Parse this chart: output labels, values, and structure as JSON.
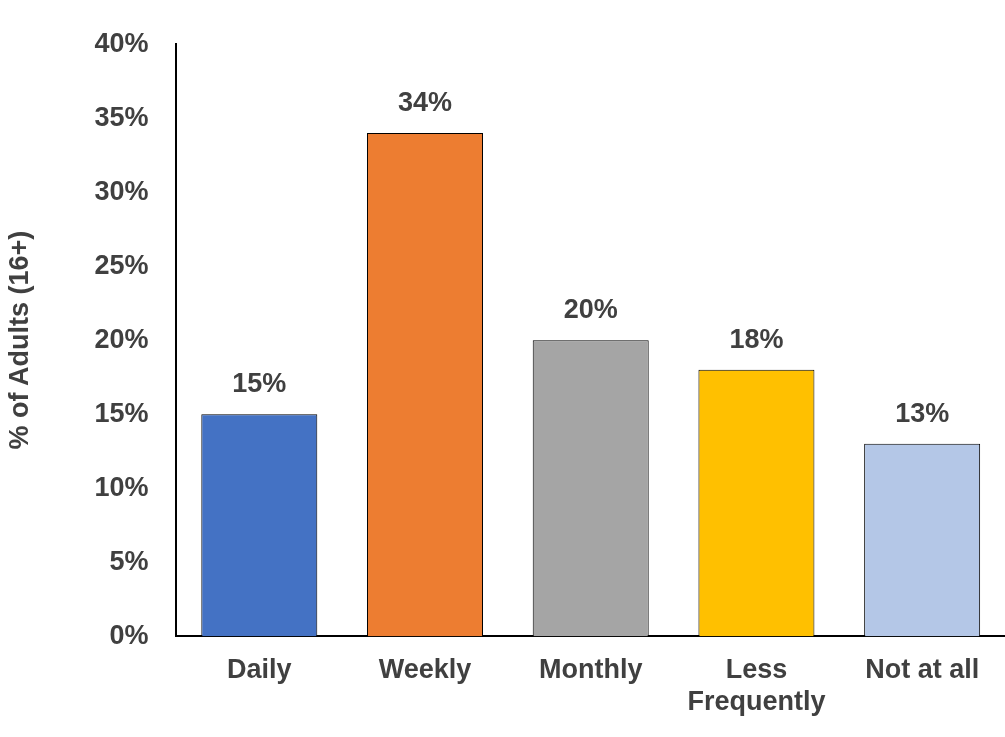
{
  "chart_data": {
    "type": "bar",
    "ylabel": "% of Adults (16+)",
    "categories": [
      "Daily",
      "Weekly",
      "Monthly",
      "Less Frequently",
      "Not at all"
    ],
    "values": [
      15,
      34,
      20,
      18,
      13
    ],
    "colors": [
      "#4472c4",
      "#ed7d31",
      "#a5a5a5",
      "#ffc000",
      "#b4c7e7"
    ],
    "value_labels": [
      "15%",
      "34%",
      "20%",
      "18%",
      "13%"
    ],
    "ylim": [
      0,
      40
    ],
    "yticks": [
      {
        "value": 0,
        "label": "0%"
      },
      {
        "value": 5,
        "label": "5%"
      },
      {
        "value": 10,
        "label": "10%"
      },
      {
        "value": 15,
        "label": "15%"
      },
      {
        "value": 20,
        "label": "20%"
      },
      {
        "value": 25,
        "label": "25%"
      },
      {
        "value": 30,
        "label": "30%"
      },
      {
        "value": 35,
        "label": "35%"
      },
      {
        "value": 40,
        "label": "40%"
      }
    ],
    "grid": false,
    "legend": false
  }
}
